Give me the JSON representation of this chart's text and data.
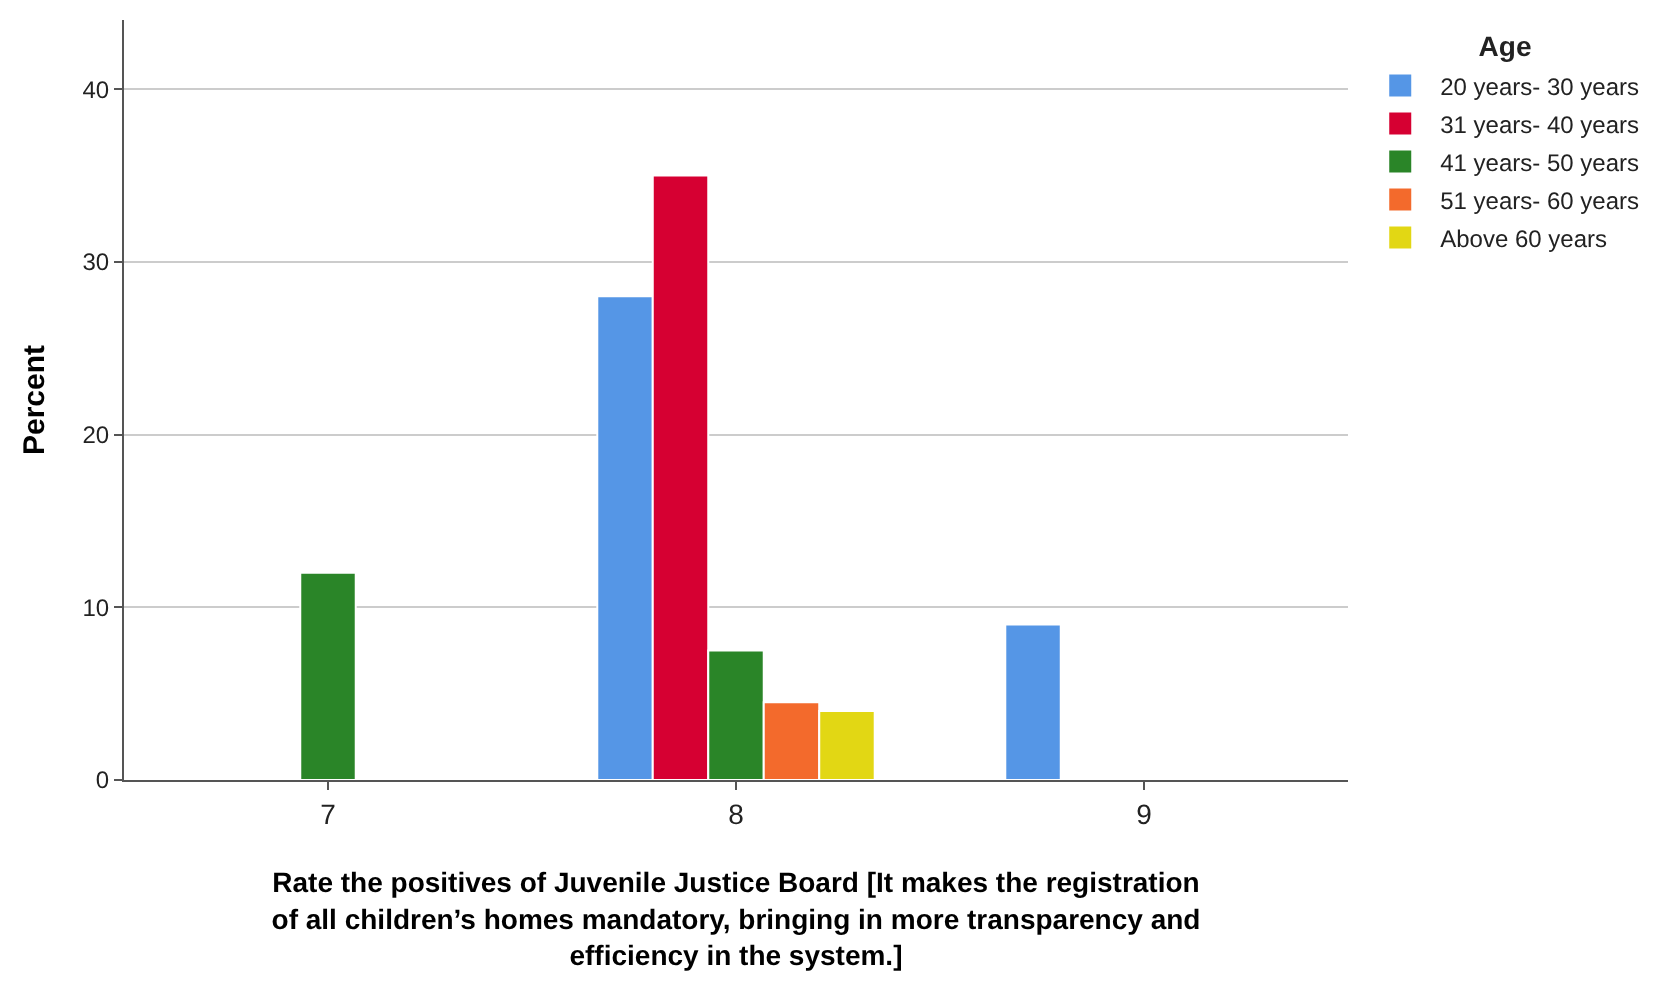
{
  "chart_data": {
    "type": "bar",
    "xlabel": "Rate the positives of Juvenile Justice Board [It makes the registration\nof all children’s homes mandatory, bringing in more transparency and\nefficiency in the system.]",
    "ylabel": "Percent",
    "legend_title": "Age",
    "categories": [
      "7",
      "8",
      "9"
    ],
    "series": [
      {
        "name": "20 years- 30 years",
        "color": "#5596e6",
        "values": [
          null,
          28,
          9
        ]
      },
      {
        "name": "31 years- 40 years",
        "color": "#d60032",
        "values": [
          null,
          35,
          null
        ]
      },
      {
        "name": "41 years- 50 years",
        "color": "#2a8528",
        "values": [
          12,
          7.5,
          null
        ]
      },
      {
        "name": "51 years- 60 years",
        "color": "#f36a2c",
        "values": [
          null,
          4.5,
          null
        ]
      },
      {
        "name": "Above 60 years",
        "color": "#e2d714",
        "values": [
          null,
          4,
          null
        ]
      }
    ],
    "ylim": [
      0,
      44
    ],
    "yticks": [
      0,
      10,
      20,
      30,
      40
    ],
    "grid": "y",
    "legend": "top right"
  }
}
